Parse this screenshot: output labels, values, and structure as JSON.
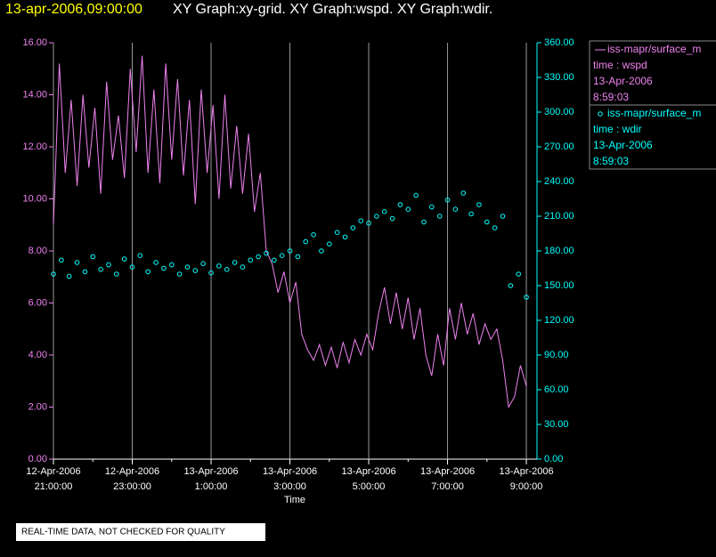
{
  "chart_data": {
    "type": "line",
    "timestamp": "13-apr-2006,09:00:00",
    "title": "XY Graph:xy-grid.  XY Graph:wspd.  XY Graph:wdir.",
    "xlabel": "Time",
    "footer": "REAL-TIME DATA, NOT CHECKED FOR QUALITY",
    "grid": true,
    "xlim": [
      21,
      33.27
    ],
    "xticks": [
      {
        "value": 21,
        "label": "12-Apr-2006 21:00:00"
      },
      {
        "value": 23,
        "label": "12-Apr-2006 23:00:00"
      },
      {
        "value": 25,
        "label": "13-Apr-2006 1:00:00"
      },
      {
        "value": 27,
        "label": "13-Apr-2006 3:00:00"
      },
      {
        "value": 29,
        "label": "13-Apr-2006 5:00:00"
      },
      {
        "value": 31,
        "label": "13-Apr-2006 7:00:00"
      },
      {
        "value": 33,
        "label": "13-Apr-2006 9:00:00"
      }
    ],
    "xminorticks": [
      22,
      24,
      26,
      28,
      30,
      32
    ],
    "ylim": [
      0,
      16
    ],
    "yticks": [
      {
        "value": 0,
        "label": "0.00"
      },
      {
        "value": 2,
        "label": "2.00"
      },
      {
        "value": 4,
        "label": "4.00"
      },
      {
        "value": 6,
        "label": "6.00"
      },
      {
        "value": 8,
        "label": "8.00"
      },
      {
        "value": 10,
        "label": "10.00"
      },
      {
        "value": 12,
        "label": "12.00"
      },
      {
        "value": 14,
        "label": "14.00"
      },
      {
        "value": 16,
        "label": "16.00"
      }
    ],
    "y2lim": [
      0,
      360
    ],
    "y2ticks": [
      {
        "value": 0,
        "label": "0.00"
      },
      {
        "value": 30,
        "label": "30.00"
      },
      {
        "value": 60,
        "label": "60.00"
      },
      {
        "value": 90,
        "label": "90.00"
      },
      {
        "value": 120,
        "label": "120.00"
      },
      {
        "value": 150,
        "label": "150.00"
      },
      {
        "value": 180,
        "label": "180.00"
      },
      {
        "value": 210,
        "label": "210.00"
      },
      {
        "value": 240,
        "label": "240.00"
      },
      {
        "value": 270,
        "label": "270.00"
      },
      {
        "value": 300,
        "label": "300.00"
      },
      {
        "value": 330,
        "label": "330.00"
      },
      {
        "value": 360,
        "label": "360.00"
      }
    ],
    "series": [
      {
        "name": "iss-mapr/surface_m",
        "style": "line",
        "color": "#ee82ee",
        "axis": "y",
        "legend_lines": [
          "time : wspd",
          "13-Apr-2006",
          "8:59:03"
        ],
        "x": [
          21.0,
          21.15,
          21.3,
          21.45,
          21.6,
          21.75,
          21.9,
          22.05,
          22.2,
          22.35,
          22.5,
          22.65,
          22.8,
          22.95,
          23.1,
          23.25,
          23.4,
          23.55,
          23.7,
          23.85,
          24.0,
          24.15,
          24.3,
          24.45,
          24.6,
          24.75,
          24.9,
          25.05,
          25.2,
          25.35,
          25.5,
          25.65,
          25.8,
          25.95,
          26.1,
          26.25,
          26.4,
          26.55,
          26.7,
          26.85,
          27.0,
          27.15,
          27.3,
          27.45,
          27.6,
          27.75,
          27.9,
          28.05,
          28.2,
          28.35,
          28.5,
          28.65,
          28.8,
          28.95,
          29.1,
          29.25,
          29.4,
          29.55,
          29.7,
          29.85,
          30.0,
          30.15,
          30.3,
          30.45,
          30.6,
          30.75,
          30.9,
          31.05,
          31.2,
          31.35,
          31.5,
          31.65,
          31.8,
          31.95,
          32.1,
          32.25,
          32.4,
          32.55,
          32.7,
          32.85,
          33.0
        ],
        "values": [
          9.0,
          15.2,
          11.0,
          13.8,
          10.5,
          14.0,
          11.2,
          13.5,
          10.2,
          14.5,
          11.5,
          13.2,
          10.8,
          15.0,
          11.8,
          15.5,
          11.0,
          14.2,
          10.6,
          15.2,
          11.5,
          14.6,
          10.9,
          13.8,
          9.8,
          14.2,
          11.0,
          13.6,
          10.0,
          14.0,
          10.4,
          12.8,
          10.2,
          12.5,
          9.5,
          11.0,
          8.0,
          7.5,
          6.4,
          7.2,
          6.0,
          6.8,
          4.8,
          4.2,
          3.8,
          4.4,
          3.6,
          4.3,
          3.5,
          4.5,
          3.7,
          4.6,
          4.0,
          4.8,
          4.2,
          5.6,
          6.6,
          5.2,
          6.4,
          5.0,
          6.2,
          4.6,
          5.8,
          4.0,
          3.2,
          4.8,
          3.6,
          5.8,
          4.6,
          6.0,
          4.8,
          5.6,
          4.4,
          5.2,
          4.6,
          5.0,
          3.8,
          2.0,
          2.4,
          3.6,
          2.8
        ]
      },
      {
        "name": "iss-mapr/surface_m",
        "style": "points",
        "color": "#00ffff",
        "axis": "y2",
        "legend_lines": [
          "time : wdir",
          "13-Apr-2006",
          "8:59:03"
        ],
        "x": [
          21.0,
          21.2,
          21.4,
          21.6,
          21.8,
          22.0,
          22.2,
          22.4,
          22.6,
          22.8,
          23.0,
          23.2,
          23.4,
          23.6,
          23.8,
          24.0,
          24.2,
          24.4,
          24.6,
          24.8,
          25.0,
          25.2,
          25.4,
          25.6,
          25.8,
          26.0,
          26.2,
          26.4,
          26.6,
          26.8,
          27.0,
          27.2,
          27.4,
          27.6,
          27.8,
          28.0,
          28.2,
          28.4,
          28.6,
          28.8,
          29.0,
          29.2,
          29.4,
          29.6,
          29.8,
          30.0,
          30.2,
          30.4,
          30.6,
          30.8,
          31.0,
          31.2,
          31.4,
          31.6,
          31.8,
          32.0,
          32.2,
          32.4,
          32.6,
          32.8,
          33.0
        ],
        "values": [
          160,
          172,
          158,
          170,
          162,
          175,
          164,
          168,
          160,
          173,
          166,
          176,
          162,
          170,
          165,
          168,
          160,
          166,
          163,
          169,
          161,
          167,
          164,
          170,
          166,
          172,
          175,
          178,
          172,
          176,
          180,
          175,
          188,
          194,
          180,
          186,
          196,
          192,
          200,
          206,
          204,
          210,
          214,
          208,
          220,
          216,
          228,
          205,
          218,
          210,
          224,
          216,
          230,
          212,
          220,
          205,
          200,
          210,
          150,
          160,
          140
        ]
      }
    ]
  }
}
